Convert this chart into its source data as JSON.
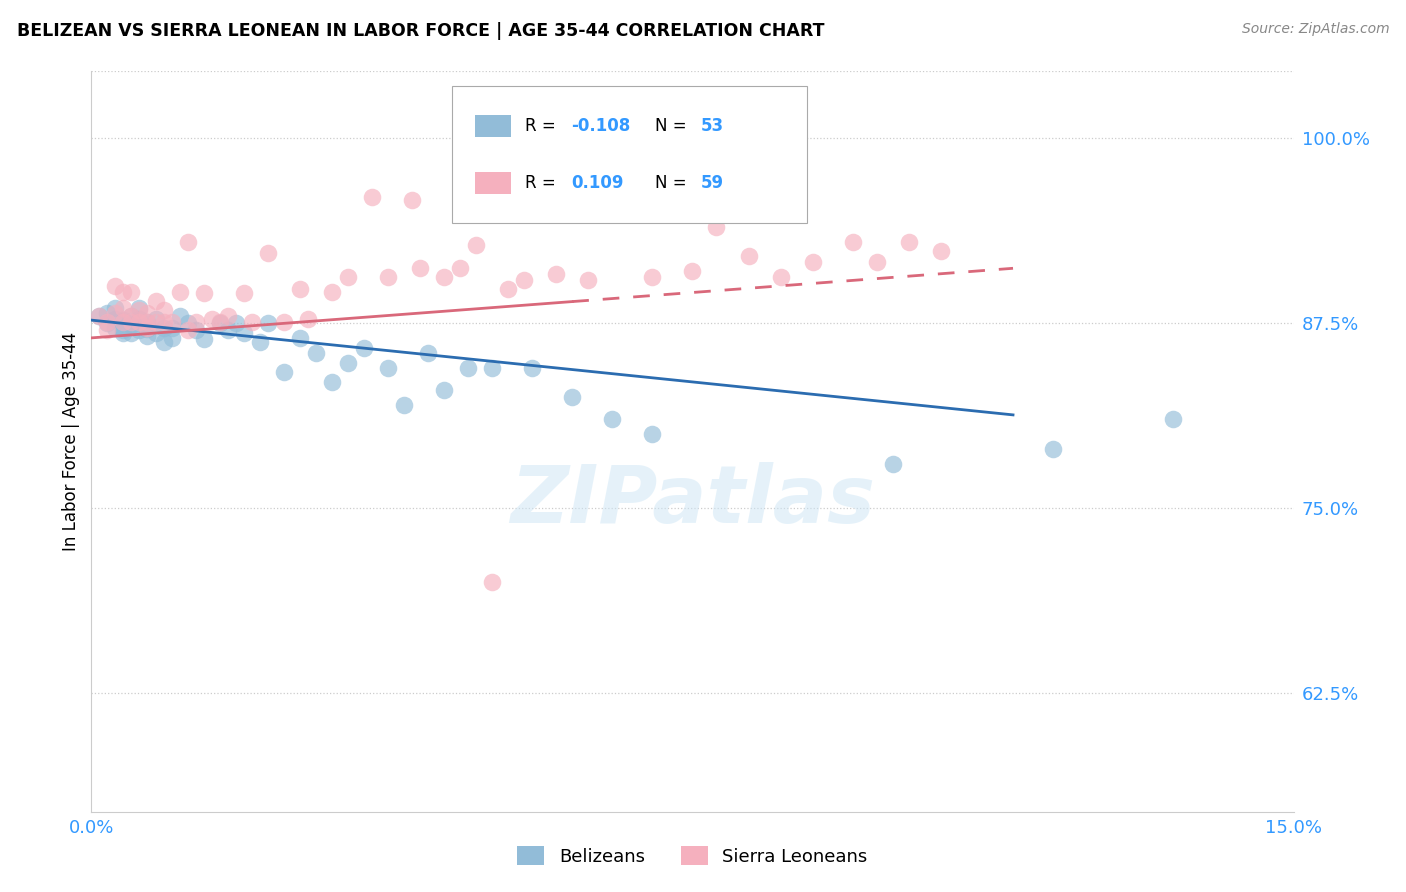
{
  "title": "BELIZEAN VS SIERRA LEONEAN IN LABOR FORCE | AGE 35-44 CORRELATION CHART",
  "source": "Source: ZipAtlas.com",
  "ylabel": "In Labor Force | Age 35-44",
  "xlim": [
    0.0,
    0.15
  ],
  "ylim": [
    0.545,
    1.045
  ],
  "ytick_right": [
    0.625,
    0.75,
    0.875,
    1.0
  ],
  "ytick_right_labels": [
    "62.5%",
    "75.0%",
    "87.5%",
    "100.0%"
  ],
  "blue_scatter_color": "#92bcd8",
  "pink_scatter_color": "#f5b0be",
  "blue_line_color": "#2b6cb0",
  "pink_line_color": "#d9687a",
  "legend_r_blue": "-0.108",
  "legend_n_blue": "53",
  "legend_r_pink": "0.109",
  "legend_n_pink": "59",
  "watermark": "ZIPatlas",
  "blue_x": [
    0.001,
    0.002,
    0.002,
    0.003,
    0.003,
    0.003,
    0.004,
    0.004,
    0.004,
    0.005,
    0.005,
    0.005,
    0.006,
    0.006,
    0.006,
    0.007,
    0.007,
    0.007,
    0.008,
    0.008,
    0.009,
    0.009,
    0.01,
    0.01,
    0.011,
    0.012,
    0.013,
    0.014,
    0.016,
    0.017,
    0.018,
    0.019,
    0.021,
    0.022,
    0.024,
    0.026,
    0.028,
    0.03,
    0.032,
    0.034,
    0.037,
    0.039,
    0.042,
    0.044,
    0.047,
    0.05,
    0.055,
    0.06,
    0.065,
    0.07,
    0.1,
    0.12,
    0.135
  ],
  "blue_y": [
    0.88,
    0.875,
    0.882,
    0.878,
    0.872,
    0.885,
    0.877,
    0.87,
    0.868,
    0.88,
    0.874,
    0.868,
    0.878,
    0.885,
    0.87,
    0.876,
    0.871,
    0.866,
    0.878,
    0.868,
    0.872,
    0.862,
    0.872,
    0.865,
    0.88,
    0.875,
    0.87,
    0.864,
    0.875,
    0.87,
    0.875,
    0.868,
    0.862,
    0.875,
    0.842,
    0.865,
    0.855,
    0.835,
    0.848,
    0.858,
    0.845,
    0.82,
    0.855,
    0.83,
    0.845,
    0.845,
    0.845,
    0.825,
    0.81,
    0.8,
    0.78,
    0.79,
    0.81
  ],
  "pink_x": [
    0.001,
    0.002,
    0.002,
    0.003,
    0.003,
    0.004,
    0.004,
    0.004,
    0.005,
    0.005,
    0.005,
    0.006,
    0.006,
    0.007,
    0.007,
    0.007,
    0.008,
    0.008,
    0.009,
    0.009,
    0.01,
    0.011,
    0.012,
    0.012,
    0.013,
    0.014,
    0.015,
    0.016,
    0.017,
    0.019,
    0.02,
    0.022,
    0.024,
    0.026,
    0.027,
    0.03,
    0.032,
    0.035,
    0.037,
    0.04,
    0.041,
    0.044,
    0.046,
    0.048,
    0.052,
    0.054,
    0.058,
    0.062,
    0.05,
    0.07,
    0.075,
    0.078,
    0.082,
    0.086,
    0.09,
    0.095,
    0.098,
    0.102,
    0.106
  ],
  "pink_y": [
    0.88,
    0.876,
    0.87,
    0.882,
    0.9,
    0.885,
    0.876,
    0.896,
    0.88,
    0.876,
    0.896,
    0.884,
    0.876,
    0.882,
    0.876,
    0.872,
    0.89,
    0.876,
    0.884,
    0.876,
    0.876,
    0.896,
    0.87,
    0.93,
    0.876,
    0.895,
    0.878,
    0.876,
    0.88,
    0.895,
    0.876,
    0.922,
    0.876,
    0.898,
    0.878,
    0.896,
    0.906,
    0.96,
    0.906,
    0.958,
    0.912,
    0.906,
    0.912,
    0.928,
    0.898,
    0.904,
    0.908,
    0.904,
    0.7,
    0.906,
    0.91,
    0.94,
    0.92,
    0.906,
    0.916,
    0.93,
    0.916,
    0.93,
    0.924
  ],
  "blue_line_x0": 0.0,
  "blue_line_x1": 0.115,
  "blue_line_y0": 0.877,
  "blue_line_y1": 0.813,
  "pink_line_x0": 0.0,
  "pink_line_x1": 0.115,
  "pink_line_solid_end": 0.06,
  "pink_line_y0": 0.865,
  "pink_line_y1": 0.912
}
